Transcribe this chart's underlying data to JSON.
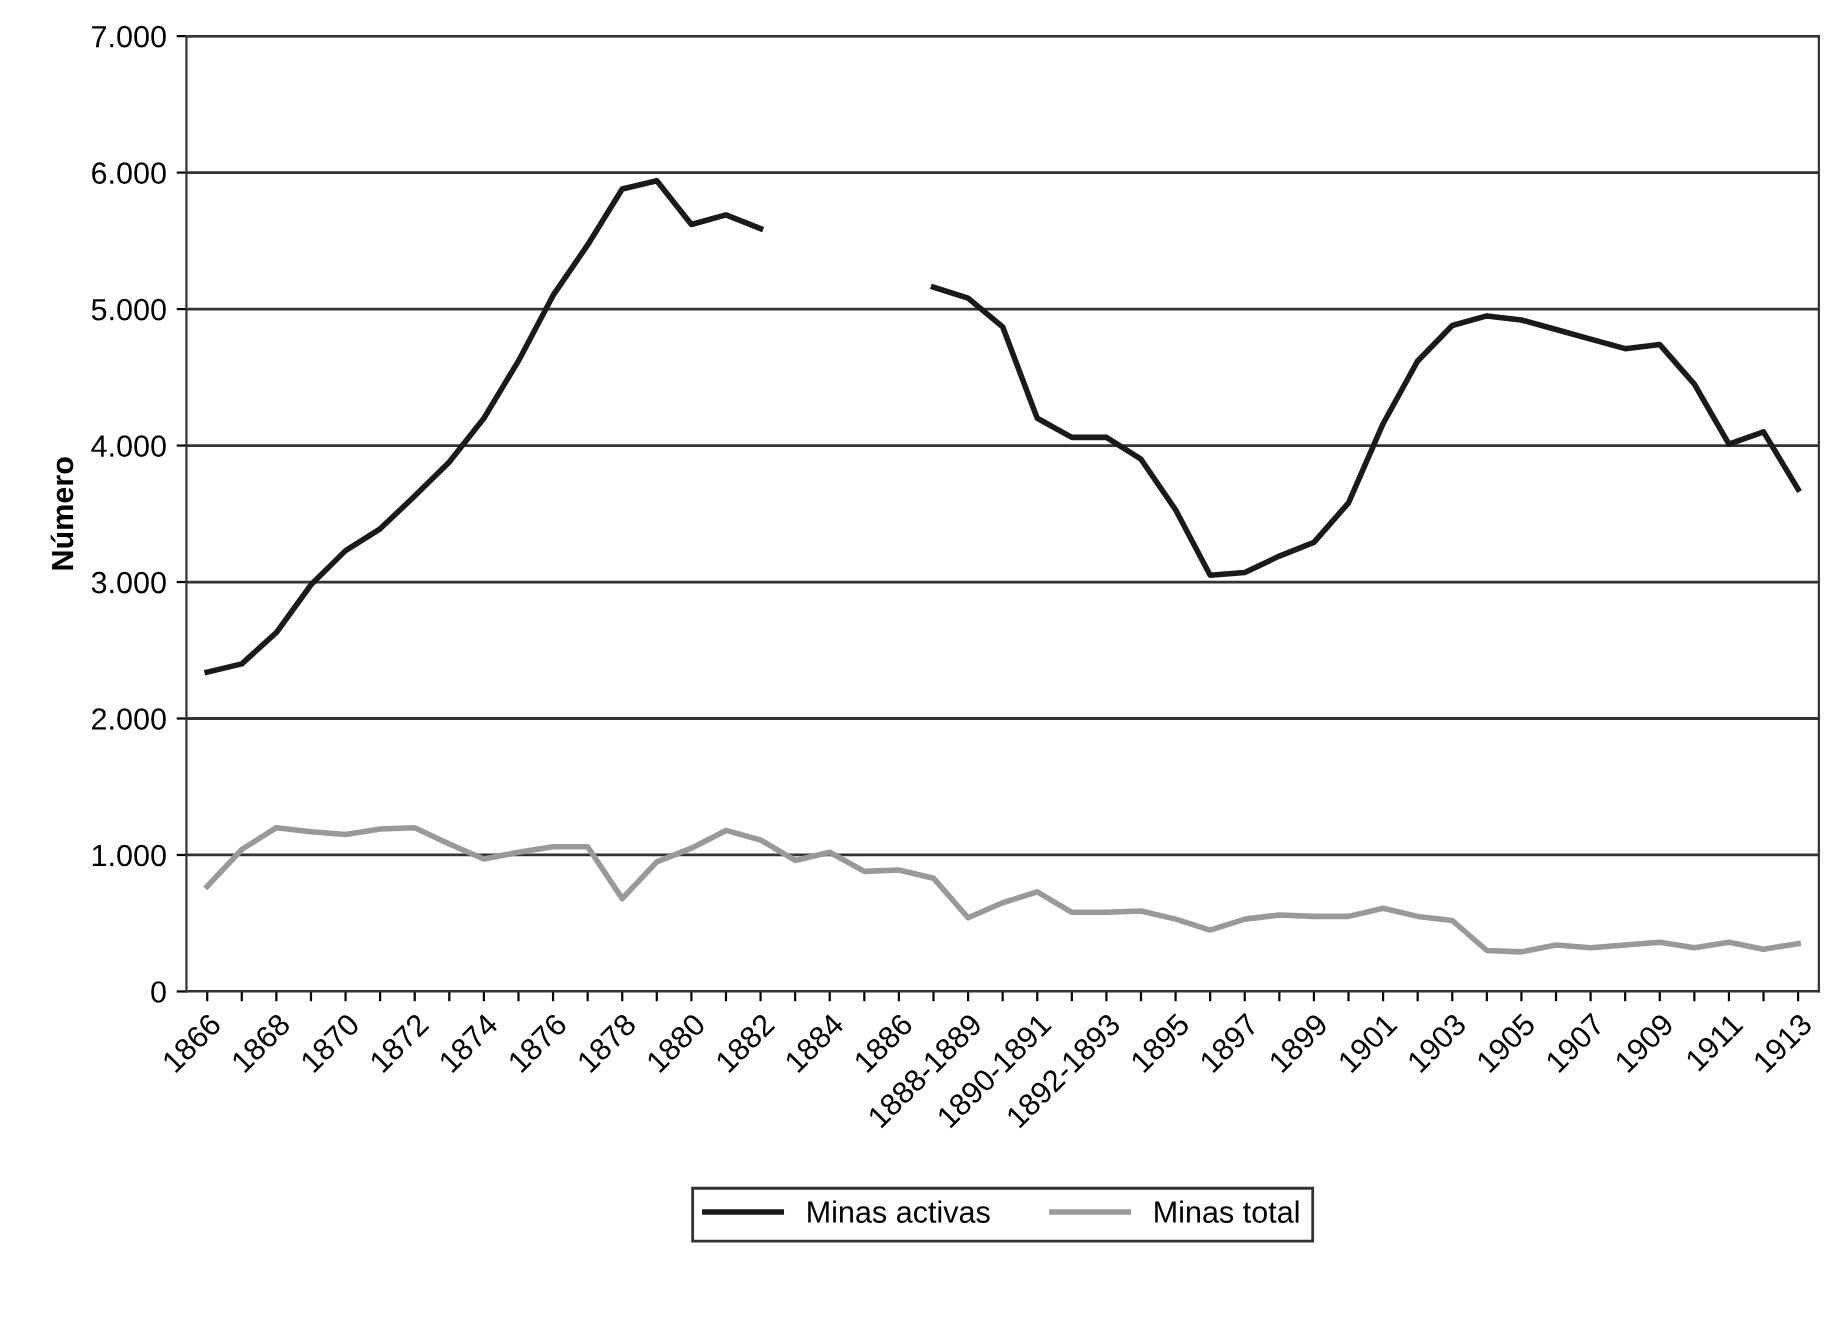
{
  "chart_data": {
    "type": "line",
    "ylabel": "Número",
    "categories": [
      "1866",
      null,
      "1868",
      null,
      "1870",
      null,
      "1872",
      null,
      "1874",
      null,
      "1876",
      null,
      "1878",
      null,
      "1880",
      null,
      "1882",
      null,
      "1884",
      null,
      "1886",
      null,
      "1888-1889",
      null,
      "1890-1891",
      null,
      "1892-1893",
      null,
      "1895",
      null,
      "1897",
      null,
      "1899",
      null,
      "1901",
      null,
      "1903",
      null,
      "1905",
      null,
      "1907",
      null,
      "1909",
      null,
      "1911",
      null,
      "1913"
    ],
    "series": [
      {
        "name": "Minas activas",
        "color": "#1a1a1a",
        "values": [
          2340,
          2400,
          2630,
          2980,
          3230,
          3390,
          3630,
          3880,
          4200,
          4620,
          5100,
          5470,
          5880,
          5940,
          5620,
          5690,
          5590,
          null,
          null,
          null,
          null,
          5160,
          5080,
          4870,
          4200,
          4060,
          4060,
          3900,
          3530,
          3050,
          3070,
          3190,
          3290,
          3580,
          4160,
          4620,
          4880,
          4950,
          4920,
          4850,
          4780,
          4710,
          4740,
          4450,
          4010,
          4100,
          3680
        ]
      },
      {
        "name": "Minas total",
        "color": "#999999",
        "values": [
          770,
          1040,
          1200,
          1170,
          1150,
          1190,
          1200,
          1080,
          970,
          1020,
          1060,
          1060,
          680,
          950,
          1050,
          1180,
          1110,
          960,
          1020,
          880,
          890,
          830,
          540,
          650,
          730,
          580,
          580,
          590,
          530,
          450,
          530,
          560,
          550,
          550,
          610,
          550,
          520,
          300,
          290,
          340,
          320,
          340,
          360,
          320,
          360,
          310,
          350
        ]
      }
    ],
    "ylim": [
      0,
      7000
    ],
    "yticks": [
      {
        "value": 0,
        "label": "0"
      },
      {
        "value": 1000,
        "label": "1.000"
      },
      {
        "value": 2000,
        "label": "2.000"
      },
      {
        "value": 3000,
        "label": "3.000"
      },
      {
        "value": 4000,
        "label": "4.000"
      },
      {
        "value": 5000,
        "label": "5.000"
      },
      {
        "value": 6000,
        "label": "6.000"
      },
      {
        "value": 7000,
        "label": "7.000"
      }
    ],
    "grid": "y",
    "legend": "bottom",
    "marker": "none",
    "line_style": "solid"
  }
}
